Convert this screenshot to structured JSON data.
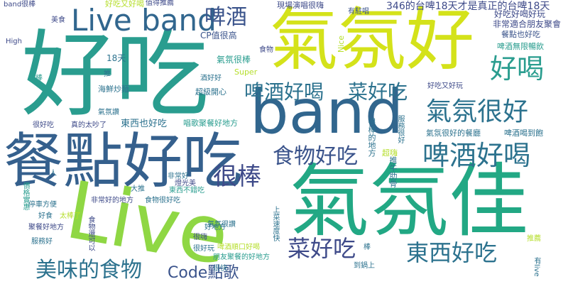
{
  "words": [
    {
      "text": "好吃",
      "color": "#2a9d8f"
    },
    {
      "text": "氣氛好",
      "color": "#d4e21a"
    },
    {
      "text": "band",
      "color": "#31668e"
    },
    {
      "text": "餐點好吃",
      "color": "#35608d"
    },
    {
      "text": "Live",
      "color": "#8fd744"
    },
    {
      "text": "氣氛佳",
      "color": "#22a884"
    },
    {
      "text": "Live band",
      "color": "#31668e"
    },
    {
      "text": "啤酒",
      "color": "#3a538b"
    },
    {
      "text": "好喝",
      "color": "#2a9d8f"
    },
    {
      "text": "啤酒好喝",
      "color": "#2c728e"
    },
    {
      "text": "菜好吃",
      "color": "#2c728e"
    },
    {
      "text": "氣氛很好",
      "color": "#2c728e"
    },
    {
      "text": "食物好吃",
      "color": "#3a538b"
    },
    {
      "text": "啤酒好喝",
      "color": "#2c728e"
    },
    {
      "text": "很棒",
      "color": "#3e4a89"
    },
    {
      "text": "美味的食物",
      "color": "#2c728e"
    },
    {
      "text": "Code點歌",
      "color": "#3a538b"
    },
    {
      "text": "菜好吃",
      "color": "#3e4a89"
    },
    {
      "text": "東西好吃",
      "color": "#2c728e"
    },
    {
      "text": "346的台啤18天才是真正的台啤18天",
      "color": "#3e4a89"
    },
    {
      "text": "好吃好喝好玩",
      "color": "#3e4a89"
    },
    {
      "text": "非常適合朋友聚會",
      "color": "#3e4a89"
    },
    {
      "text": "餐點也好吃",
      "color": "#3a538b"
    },
    {
      "text": "啤酒無限暢飲",
      "color": "#2a9d8f"
    },
    {
      "text": "現場演唱很嗨",
      "color": "#3e4a89"
    },
    {
      "text": "有駐唱",
      "color": "#3a538b"
    },
    {
      "text": "好吃又好喝",
      "color": "#b5de2b"
    },
    {
      "text": "值得推薦",
      "color": "#3e4a89"
    },
    {
      "text": "band很棒",
      "color": "#3e4a89"
    },
    {
      "text": "美食",
      "color": "#3e4a89"
    },
    {
      "text": "High",
      "color": "#3e4a89"
    },
    {
      "text": "CP值很高",
      "color": "#3a538b"
    },
    {
      "text": "18天",
      "color": "#2c728e"
    },
    {
      "text": "氣氛很棒",
      "color": "#2a9d8f"
    },
    {
      "text": "食物",
      "color": "#3e4a89"
    },
    {
      "text": "Super",
      "color": "#b5de2b"
    },
    {
      "text": "酒好好",
      "color": "#2c728e"
    },
    {
      "text": "Nice",
      "color": "#b5de2b"
    },
    {
      "text": "超級開心",
      "color": "#2c728e"
    },
    {
      "text": "海鮮炒麵",
      "color": "#2c728e"
    },
    {
      "text": "推",
      "color": "#2c728e"
    },
    {
      "text": "超棒",
      "color": "#2a9d8f"
    },
    {
      "text": "東西也好吃",
      "color": "#2c728e"
    },
    {
      "text": "氣氛讚",
      "color": "#2c728e"
    },
    {
      "text": "很好吃",
      "color": "#3e4a89"
    },
    {
      "text": "真的太吵了",
      "color": "#3e4a89"
    },
    {
      "text": "唱歌聚餐好地方",
      "color": "#2a9d8f"
    },
    {
      "text": "好吃又好玩",
      "color": "#3e4a89"
    },
    {
      "text": "氣氛很好的餐廳",
      "color": "#2c728e"
    },
    {
      "text": "啤酒喝到飽",
      "color": "#2c728e"
    },
    {
      "text": "服務很好",
      "color": "#2c728e"
    },
    {
      "text": "很棒的地方",
      "color": "#2c728e"
    },
    {
      "text": "超嗨",
      "color": "#b5de2b"
    },
    {
      "text": "非常好",
      "color": "#2c728e"
    },
    {
      "text": "燈光美",
      "color": "#3e4a89"
    },
    {
      "text": "推牛肋骨",
      "color": "#2c728e"
    },
    {
      "text": "人",
      "color": "#2c728e"
    },
    {
      "text": "大推",
      "color": "#2c728e"
    },
    {
      "text": "東西不錯吃",
      "color": "#2a9d8f"
    },
    {
      "text": "食物很好吃",
      "color": "#2c728e"
    },
    {
      "text": "非常好的地方",
      "color": "#3e4a89"
    },
    {
      "text": "氣氛很讚",
      "color": "#2c728e"
    },
    {
      "text": "停車方便",
      "color": "#2c728e"
    },
    {
      "text": "好食",
      "color": "#2c728e"
    },
    {
      "text": "太棒了",
      "color": "#b5de2b"
    },
    {
      "text": "聚餐好地方",
      "color": "#3e4a89"
    },
    {
      "text": "服務好",
      "color": "#2c728e"
    },
    {
      "text": "很嗨",
      "color": "#3e4a89"
    },
    {
      "text": "好地方",
      "color": "#2c728e"
    },
    {
      "text": "啤酒順口好喝",
      "color": "#b5de2b"
    },
    {
      "text": "朋友聚餐的好地方",
      "color": "#2a9d8f"
    },
    {
      "text": "很快",
      "color": "#2c728e"
    },
    {
      "text": "食物還可以",
      "color": "#3e4a89"
    },
    {
      "text": "上菜速度快",
      "color": "#2c728e"
    },
    {
      "text": "推薦",
      "color": "#b5de2b"
    },
    {
      "text": "棒",
      "color": "#2c728e"
    },
    {
      "text": "到鍋上",
      "color": "#2c728e"
    },
    {
      "text": "有live",
      "color": "#2c728e"
    },
    {
      "text": "價格實惠",
      "color": "#2a9d8f"
    },
    {
      "text": "很好玩",
      "color": "#2c728e"
    }
  ]
}
